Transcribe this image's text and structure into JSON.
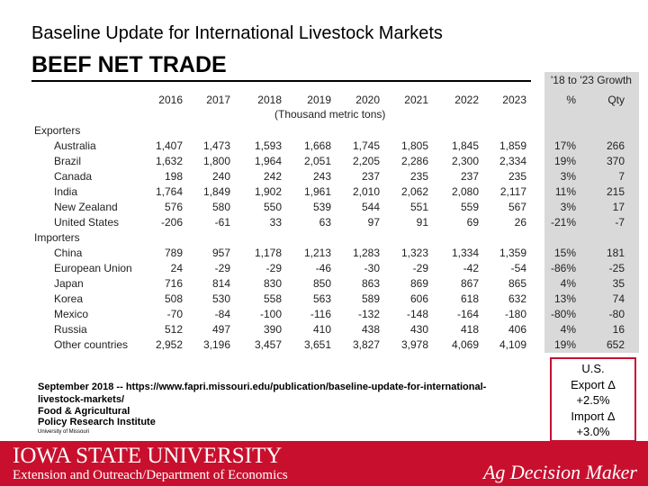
{
  "header": {
    "subtitle": "Baseline Update for International Livestock Markets",
    "title": "BEEF NET TRADE"
  },
  "table": {
    "years": [
      "2016",
      "2017",
      "2018",
      "2019",
      "2020",
      "2021",
      "2022",
      "2023"
    ],
    "growth_header": "'18 to '23 Growth",
    "growth_columns": [
      "%",
      "Qty"
    ],
    "unit": "(Thousand metric tons)",
    "sections": [
      {
        "label": "Exporters",
        "rows": [
          [
            "Australia",
            "1,407",
            "1,473",
            "1,593",
            "1,668",
            "1,745",
            "1,805",
            "1,845",
            "1,859",
            "17%",
            "266"
          ],
          [
            "Brazil",
            "1,632",
            "1,800",
            "1,964",
            "2,051",
            "2,205",
            "2,286",
            "2,300",
            "2,334",
            "19%",
            "370"
          ],
          [
            "Canada",
            "198",
            "240",
            "242",
            "243",
            "237",
            "235",
            "237",
            "235",
            "3%",
            "7"
          ],
          [
            "India",
            "1,764",
            "1,849",
            "1,902",
            "1,961",
            "2,010",
            "2,062",
            "2,080",
            "2,117",
            "11%",
            "215"
          ],
          [
            "New Zealand",
            "576",
            "580",
            "550",
            "539",
            "544",
            "551",
            "559",
            "567",
            "3%",
            "17"
          ],
          [
            "United States",
            "-206",
            "-61",
            "33",
            "63",
            "97",
            "91",
            "69",
            "26",
            "-21%",
            "-7"
          ]
        ]
      },
      {
        "label": "Importers",
        "rows": [
          [
            "China",
            "789",
            "957",
            "1,178",
            "1,213",
            "1,283",
            "1,323",
            "1,334",
            "1,359",
            "15%",
            "181"
          ],
          [
            "European Union",
            "24",
            "-29",
            "-29",
            "-46",
            "-30",
            "-29",
            "-42",
            "-54",
            "-86%",
            "-25"
          ],
          [
            "Japan",
            "716",
            "814",
            "830",
            "850",
            "863",
            "869",
            "867",
            "865",
            "4%",
            "35"
          ],
          [
            "Korea",
            "508",
            "530",
            "558",
            "563",
            "589",
            "606",
            "618",
            "632",
            "13%",
            "74"
          ],
          [
            "Mexico",
            "-70",
            "-84",
            "-100",
            "-116",
            "-132",
            "-148",
            "-164",
            "-180",
            "-80%",
            "-80"
          ],
          [
            "Russia",
            "512",
            "497",
            "390",
            "410",
            "438",
            "430",
            "418",
            "406",
            "4%",
            "16"
          ],
          [
            "Other countries",
            "2,952",
            "3,196",
            "3,457",
            "3,651",
            "3,827",
            "3,978",
            "4,069",
            "4,109",
            "19%",
            "652"
          ]
        ]
      }
    ]
  },
  "source": {
    "citation": "September 2018 -- https://www.fapri.missouri.edu/publication/baseline-update-for-international-livestock-markets/",
    "org_line1": "Food & Agricultural",
    "org_line2": "Policy Research Institute",
    "org_line3": "University of Missouri"
  },
  "summary": {
    "lines": [
      "U.S.",
      "Export Δ",
      "+2.5%",
      "Import Δ",
      "+3.0%"
    ]
  },
  "footer": {
    "university": "IOWA STATE UNIVERSITY",
    "department": "Extension and Outreach/Department of Economics",
    "brand": "Ag Decision Maker"
  }
}
